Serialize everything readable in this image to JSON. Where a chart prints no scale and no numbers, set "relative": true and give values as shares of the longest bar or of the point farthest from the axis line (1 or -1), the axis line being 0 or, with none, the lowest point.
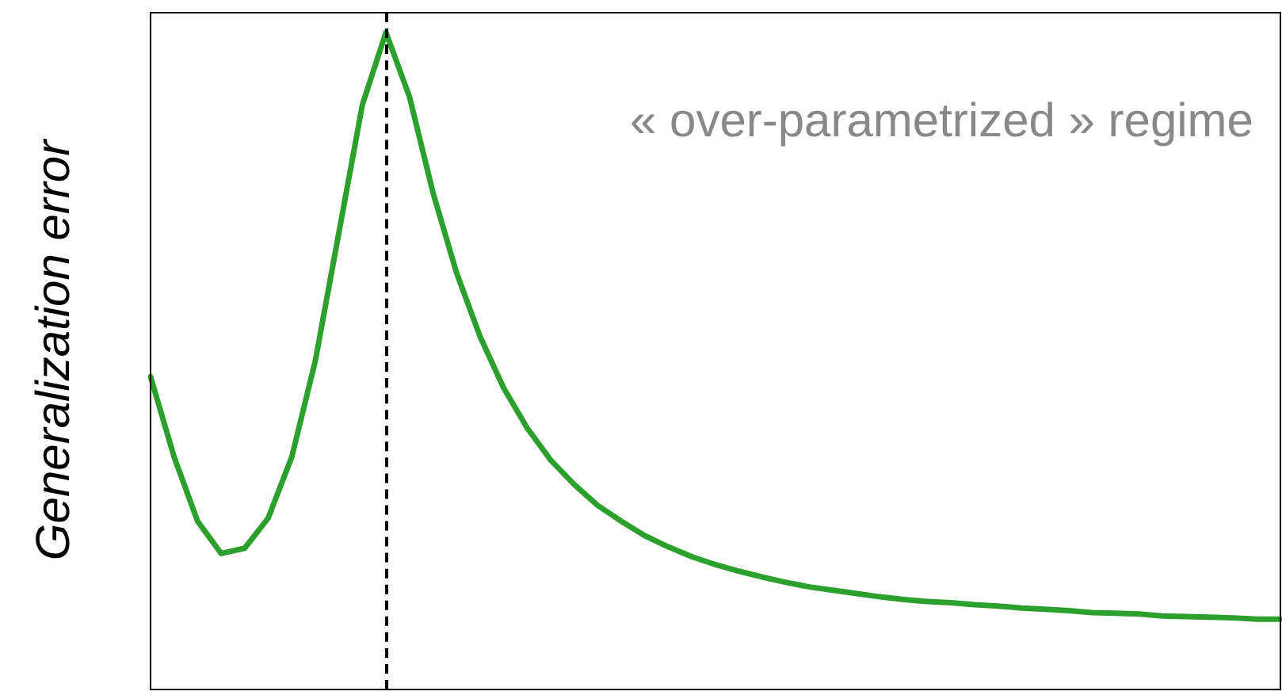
{
  "chart_data": {
    "type": "line",
    "relative": true,
    "ylabel": "Generalization error",
    "annotations": [
      "« over-parametrized » regime"
    ],
    "categories": [
      null,
      null,
      null,
      null,
      null,
      null,
      null,
      null,
      null,
      null,
      null,
      null,
      null,
      null,
      null,
      null,
      null,
      null,
      null,
      null,
      null,
      null,
      null,
      null,
      null,
      null,
      null,
      null,
      null,
      null,
      null,
      null,
      null,
      null,
      null,
      null,
      null,
      null,
      null,
      null,
      null,
      null,
      null,
      null,
      null,
      null,
      null,
      null,
      null
    ],
    "series": [
      {
        "color": "#2ca02c",
        "values": [
          0.476,
          0.354,
          0.256,
          0.207,
          0.215,
          0.261,
          0.354,
          0.5,
          0.695,
          0.89,
          1,
          0.902,
          0.756,
          0.634,
          0.537,
          0.459,
          0.398,
          0.349,
          0.312,
          0.28,
          0.256,
          0.234,
          0.217,
          0.202,
          0.19,
          0.18,
          0.171,
          0.163,
          0.156,
          0.151,
          0.146,
          0.141,
          0.137,
          0.134,
          0.132,
          0.129,
          0.127,
          0.124,
          0.122,
          0.12,
          0.117,
          0.116,
          0.115,
          0.112,
          0.111,
          0.11,
          0.109,
          0.107,
          0.107
        ]
      }
    ],
    "marker": "none",
    "line_style": "solid",
    "grid": false,
    "legend": false
  }
}
